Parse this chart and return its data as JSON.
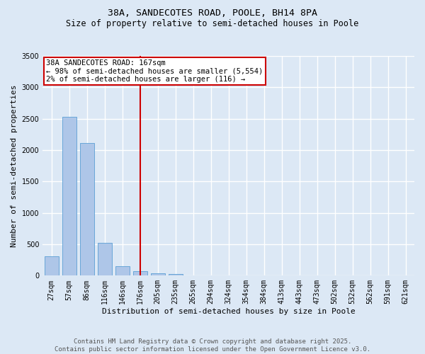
{
  "title_line1": "38A, SANDECOTES ROAD, POOLE, BH14 8PA",
  "title_line2": "Size of property relative to semi-detached houses in Poole",
  "xlabel": "Distribution of semi-detached houses by size in Poole",
  "ylabel": "Number of semi-detached properties",
  "categories": [
    "27sqm",
    "57sqm",
    "86sqm",
    "116sqm",
    "146sqm",
    "176sqm",
    "205sqm",
    "235sqm",
    "265sqm",
    "294sqm",
    "324sqm",
    "354sqm",
    "384sqm",
    "413sqm",
    "443sqm",
    "473sqm",
    "502sqm",
    "532sqm",
    "562sqm",
    "591sqm",
    "621sqm"
  ],
  "values": [
    310,
    2530,
    2110,
    520,
    150,
    70,
    40,
    25,
    5,
    0,
    0,
    0,
    0,
    0,
    0,
    0,
    0,
    0,
    0,
    0,
    0
  ],
  "bar_color": "#aec6e8",
  "bar_edge_color": "#5a9fd4",
  "background_color": "#dce8f5",
  "grid_color": "#ffffff",
  "vline_x_index": 5,
  "annotation_text": "38A SANDECOTES ROAD: 167sqm\n← 98% of semi-detached houses are smaller (5,554)\n2% of semi-detached houses are larger (116) →",
  "annotation_box_color": "#ffffff",
  "annotation_box_edge_color": "#cc0000",
  "vline_color": "#cc0000",
  "ylim": [
    0,
    3500
  ],
  "yticks": [
    0,
    500,
    1000,
    1500,
    2000,
    2500,
    3000,
    3500
  ],
  "footer_line1": "Contains HM Land Registry data © Crown copyright and database right 2025.",
  "footer_line2": "Contains public sector information licensed under the Open Government Licence v3.0.",
  "title_fontsize": 9.5,
  "subtitle_fontsize": 8.5,
  "axis_label_fontsize": 8,
  "tick_fontsize": 7,
  "annotation_fontsize": 7.5,
  "footer_fontsize": 6.5
}
